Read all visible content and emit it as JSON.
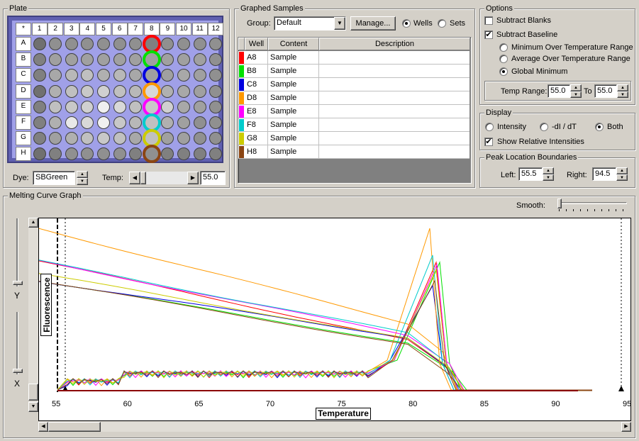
{
  "plate": {
    "title": "Plate",
    "col_labels": [
      "*",
      "1",
      "2",
      "3",
      "4",
      "5",
      "6",
      "7",
      "8",
      "9",
      "10",
      "11",
      "12"
    ],
    "row_labels": [
      "A",
      "B",
      "C",
      "D",
      "E",
      "F",
      "G",
      "H"
    ],
    "dye_label": "Dye:",
    "dye_value": "SBGreen",
    "temp_label": "Temp:",
    "temp_value": "55.0"
  },
  "samples": {
    "title": "Graphed Samples",
    "group_label": "Group:",
    "group_value": "Default",
    "manage_label": "Manage...",
    "wells_label": "Wells",
    "sets_label": "Sets",
    "headers": [
      "Well",
      "Content",
      "Description"
    ],
    "rows": [
      {
        "well": "A8",
        "content": "Sample",
        "description": "",
        "color": "#ff0000"
      },
      {
        "well": "B8",
        "content": "Sample",
        "description": "",
        "color": "#00e000"
      },
      {
        "well": "C8",
        "content": "Sample",
        "description": "",
        "color": "#0000e0"
      },
      {
        "well": "D8",
        "content": "Sample",
        "description": "",
        "color": "#ff9900"
      },
      {
        "well": "E8",
        "content": "Sample",
        "description": "",
        "color": "#ff00ff"
      },
      {
        "well": "F8",
        "content": "Sample",
        "description": "",
        "color": "#00cccc"
      },
      {
        "well": "G8",
        "content": "Sample",
        "description": "",
        "color": "#cccc00"
      },
      {
        "well": "H8",
        "content": "Sample",
        "description": "",
        "color": "#8b4513"
      }
    ]
  },
  "options": {
    "title": "Options",
    "subtract_blanks": "Subtract Blanks",
    "subtract_baseline": "Subtract Baseline",
    "min_over": "Minimum Over Temperature Range",
    "avg_over": "Average Over Temperature Range",
    "global_min": "Global Minimum",
    "temp_range_label": "Temp Range:",
    "temp_range_from": "55.0",
    "to_label": "To",
    "temp_range_to": "55.0"
  },
  "display": {
    "title": "Display",
    "intensity": "Intensity",
    "dl_dt": "-dI / dT",
    "both": "Both",
    "show_relative": "Show Relative Intensities"
  },
  "peak": {
    "title": "Peak Location Boundaries",
    "left_label": "Left:",
    "left_value": "55.5",
    "right_label": "Right:",
    "right_value": "94.5"
  },
  "graph": {
    "title": "Melting Curve Graph",
    "smooth_label": "Smooth:",
    "y_label": "Y",
    "x_label": "X",
    "ylabel": "Fluorescence",
    "xlabel": "Temperature",
    "x_ticks": [
      "55",
      "60",
      "65",
      "70",
      "75",
      "80",
      "85",
      "90",
      "95"
    ]
  }
}
